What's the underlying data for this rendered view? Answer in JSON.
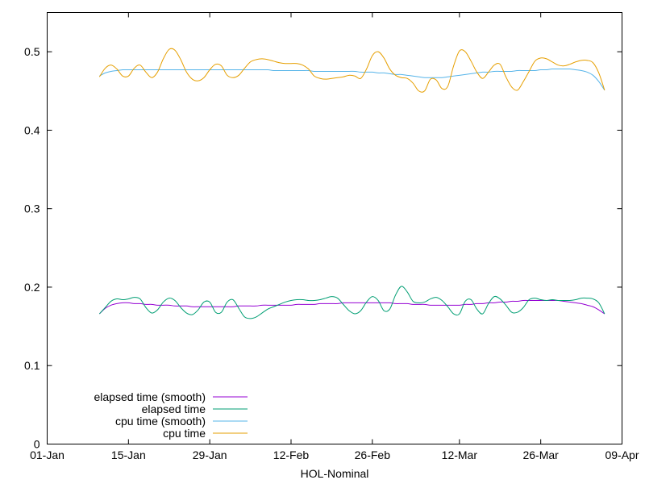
{
  "chart_data": {
    "type": "line",
    "title": "",
    "xlabel": "HOL-Nominal",
    "ylabel": "",
    "x_axis": {
      "type": "date",
      "range": [
        "2024-01-01",
        "2024-04-09"
      ],
      "ticks": [
        {
          "date": "2024-01-01",
          "label": "01-Jan"
        },
        {
          "date": "2024-01-15",
          "label": "15-Jan"
        },
        {
          "date": "2024-01-29",
          "label": "29-Jan"
        },
        {
          "date": "2024-02-12",
          "label": "12-Feb"
        },
        {
          "date": "2024-02-26",
          "label": "26-Feb"
        },
        {
          "date": "2024-03-12",
          "label": "12-Mar"
        },
        {
          "date": "2024-03-26",
          "label": "26-Mar"
        },
        {
          "date": "2024-04-09",
          "label": "09-Apr"
        }
      ]
    },
    "y_axis": {
      "range": [
        0,
        0.55
      ],
      "ticks": [
        {
          "value": 0,
          "label": "0"
        },
        {
          "value": 0.1,
          "label": "0.1"
        },
        {
          "value": 0.2,
          "label": "0.2"
        },
        {
          "value": 0.3,
          "label": "0.3"
        },
        {
          "value": 0.4,
          "label": "0.4"
        },
        {
          "value": 0.5,
          "label": "0.5"
        }
      ]
    },
    "grid": false,
    "legend_position": "bottom-left",
    "x": [
      "2024-01-10",
      "2024-01-11",
      "2024-01-12",
      "2024-01-13",
      "2024-01-14",
      "2024-01-15",
      "2024-01-16",
      "2024-01-17",
      "2024-01-18",
      "2024-01-19",
      "2024-01-20",
      "2024-01-21",
      "2024-01-22",
      "2024-01-23",
      "2024-01-24",
      "2024-01-25",
      "2024-01-26",
      "2024-01-27",
      "2024-01-28",
      "2024-01-29",
      "2024-01-30",
      "2024-01-31",
      "2024-02-01",
      "2024-02-02",
      "2024-02-03",
      "2024-02-04",
      "2024-02-05",
      "2024-02-06",
      "2024-02-07",
      "2024-02-08",
      "2024-02-09",
      "2024-02-10",
      "2024-02-11",
      "2024-02-12",
      "2024-02-13",
      "2024-02-14",
      "2024-02-15",
      "2024-02-16",
      "2024-02-17",
      "2024-02-18",
      "2024-02-19",
      "2024-02-20",
      "2024-02-21",
      "2024-02-22",
      "2024-02-23",
      "2024-02-24",
      "2024-02-25",
      "2024-02-26",
      "2024-02-27",
      "2024-02-28",
      "2024-02-29",
      "2024-03-01",
      "2024-03-02",
      "2024-03-03",
      "2024-03-04",
      "2024-03-05",
      "2024-03-06",
      "2024-03-07",
      "2024-03-08",
      "2024-03-09",
      "2024-03-10",
      "2024-03-11",
      "2024-03-12",
      "2024-03-13",
      "2024-03-14",
      "2024-03-15",
      "2024-03-16",
      "2024-03-17",
      "2024-03-18",
      "2024-03-19",
      "2024-03-20",
      "2024-03-21",
      "2024-03-22",
      "2024-03-23",
      "2024-03-24",
      "2024-03-25",
      "2024-03-26",
      "2024-03-27",
      "2024-03-28",
      "2024-03-29",
      "2024-03-30",
      "2024-03-31",
      "2024-04-01",
      "2024-04-02",
      "2024-04-03",
      "2024-04-04",
      "2024-04-05",
      "2024-04-06"
    ],
    "series": [
      {
        "name": "elapsed time (smooth)",
        "color": "#9400d3",
        "values": [
          0.166,
          0.173,
          0.177,
          0.179,
          0.18,
          0.18,
          0.179,
          0.179,
          0.178,
          0.178,
          0.177,
          0.177,
          0.177,
          0.176,
          0.176,
          0.176,
          0.175,
          0.175,
          0.175,
          0.175,
          0.175,
          0.175,
          0.175,
          0.175,
          0.176,
          0.176,
          0.176,
          0.176,
          0.177,
          0.177,
          0.177,
          0.177,
          0.177,
          0.177,
          0.178,
          0.178,
          0.178,
          0.178,
          0.179,
          0.179,
          0.179,
          0.179,
          0.18,
          0.18,
          0.18,
          0.18,
          0.18,
          0.18,
          0.18,
          0.18,
          0.18,
          0.179,
          0.179,
          0.179,
          0.178,
          0.178,
          0.178,
          0.177,
          0.177,
          0.177,
          0.177,
          0.177,
          0.177,
          0.178,
          0.178,
          0.179,
          0.179,
          0.18,
          0.18,
          0.181,
          0.181,
          0.182,
          0.182,
          0.183,
          0.183,
          0.183,
          0.183,
          0.183,
          0.183,
          0.183,
          0.182,
          0.181,
          0.18,
          0.179,
          0.177,
          0.175,
          0.171,
          0.166
        ]
      },
      {
        "name": "elapsed time",
        "color": "#009e73",
        "values": [
          0.166,
          0.174,
          0.182,
          0.185,
          0.184,
          0.185,
          0.187,
          0.185,
          0.174,
          0.167,
          0.171,
          0.181,
          0.186,
          0.183,
          0.174,
          0.167,
          0.165,
          0.171,
          0.181,
          0.181,
          0.168,
          0.168,
          0.181,
          0.184,
          0.173,
          0.162,
          0.16,
          0.162,
          0.167,
          0.172,
          0.175,
          0.178,
          0.181,
          0.183,
          0.184,
          0.184,
          0.183,
          0.183,
          0.184,
          0.186,
          0.188,
          0.186,
          0.178,
          0.17,
          0.166,
          0.17,
          0.181,
          0.188,
          0.183,
          0.17,
          0.172,
          0.19,
          0.201,
          0.194,
          0.182,
          0.18,
          0.181,
          0.185,
          0.187,
          0.183,
          0.175,
          0.166,
          0.166,
          0.182,
          0.184,
          0.172,
          0.166,
          0.179,
          0.188,
          0.185,
          0.177,
          0.168,
          0.168,
          0.174,
          0.184,
          0.186,
          0.184,
          0.183,
          0.184,
          0.183,
          0.183,
          0.183,
          0.184,
          0.186,
          0.186,
          0.185,
          0.18,
          0.166
        ]
      },
      {
        "name": "cpu time (smooth)",
        "color": "#56b4e9",
        "values": [
          0.469,
          0.473,
          0.475,
          0.476,
          0.477,
          0.477,
          0.477,
          0.477,
          0.477,
          0.477,
          0.477,
          0.477,
          0.477,
          0.477,
          0.477,
          0.477,
          0.477,
          0.477,
          0.477,
          0.477,
          0.477,
          0.477,
          0.477,
          0.477,
          0.477,
          0.477,
          0.477,
          0.477,
          0.477,
          0.477,
          0.476,
          0.476,
          0.476,
          0.476,
          0.476,
          0.476,
          0.476,
          0.475,
          0.475,
          0.475,
          0.475,
          0.475,
          0.475,
          0.475,
          0.475,
          0.474,
          0.474,
          0.474,
          0.473,
          0.473,
          0.472,
          0.471,
          0.471,
          0.47,
          0.469,
          0.468,
          0.467,
          0.467,
          0.467,
          0.467,
          0.468,
          0.469,
          0.47,
          0.471,
          0.472,
          0.473,
          0.474,
          0.474,
          0.475,
          0.475,
          0.475,
          0.475,
          0.476,
          0.476,
          0.476,
          0.476,
          0.477,
          0.477,
          0.478,
          0.478,
          0.478,
          0.478,
          0.477,
          0.476,
          0.474,
          0.47,
          0.462,
          0.451
        ]
      },
      {
        "name": "cpu time",
        "color": "#e69f00",
        "values": [
          0.468,
          0.479,
          0.483,
          0.478,
          0.469,
          0.469,
          0.479,
          0.483,
          0.474,
          0.467,
          0.474,
          0.491,
          0.503,
          0.502,
          0.49,
          0.474,
          0.465,
          0.463,
          0.467,
          0.477,
          0.484,
          0.482,
          0.47,
          0.467,
          0.47,
          0.479,
          0.487,
          0.49,
          0.491,
          0.49,
          0.488,
          0.486,
          0.485,
          0.485,
          0.485,
          0.483,
          0.478,
          0.469,
          0.466,
          0.465,
          0.466,
          0.467,
          0.468,
          0.47,
          0.469,
          0.466,
          0.478,
          0.495,
          0.5,
          0.492,
          0.478,
          0.47,
          0.467,
          0.466,
          0.46,
          0.45,
          0.45,
          0.465,
          0.464,
          0.453,
          0.456,
          0.482,
          0.501,
          0.5,
          0.488,
          0.474,
          0.466,
          0.474,
          0.483,
          0.484,
          0.468,
          0.455,
          0.451,
          0.462,
          0.475,
          0.488,
          0.492,
          0.491,
          0.487,
          0.483,
          0.482,
          0.484,
          0.487,
          0.489,
          0.489,
          0.486,
          0.473,
          0.451
        ]
      }
    ]
  }
}
